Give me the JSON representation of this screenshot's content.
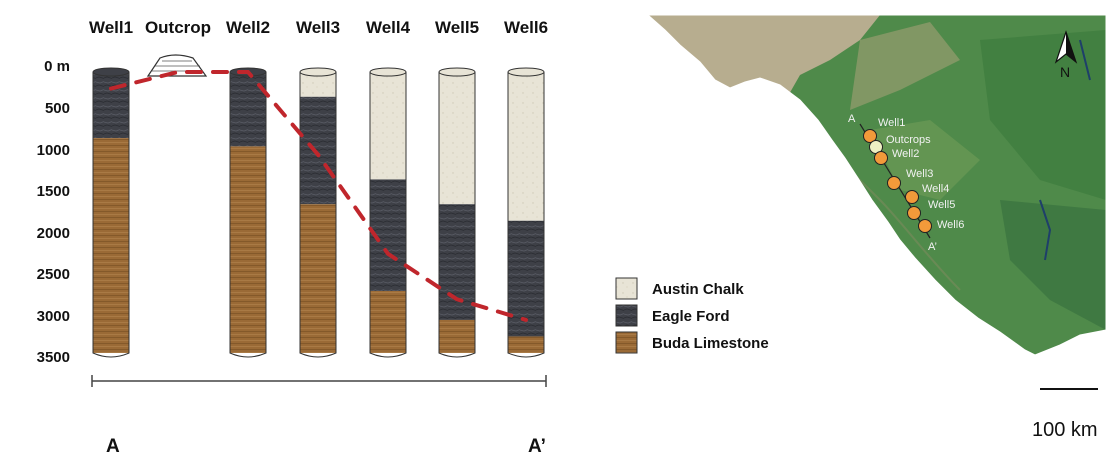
{
  "columns": [
    {
      "label": "Well1"
    },
    {
      "label": "Outcrop"
    },
    {
      "label": "Well2"
    },
    {
      "label": "Well3"
    },
    {
      "label": "Well4"
    },
    {
      "label": "Well5"
    },
    {
      "label": "Well6"
    }
  ],
  "wells": [
    {
      "name": "Well1",
      "top": 0,
      "layers": [
        {
          "unit": "eagle_ford",
          "to": 800
        },
        {
          "unit": "buda",
          "to": 3400
        }
      ]
    },
    {
      "name": "Well2",
      "top": 0,
      "layers": [
        {
          "unit": "eagle_ford",
          "to": 900
        },
        {
          "unit": "buda",
          "to": 3400
        }
      ]
    },
    {
      "name": "Well3",
      "top": 0,
      "layers": [
        {
          "unit": "austin_chalk",
          "to": 300
        },
        {
          "unit": "eagle_ford",
          "to": 1600
        },
        {
          "unit": "buda",
          "to": 3400
        }
      ]
    },
    {
      "name": "Well4",
      "top": 0,
      "layers": [
        {
          "unit": "austin_chalk",
          "to": 1300
        },
        {
          "unit": "eagle_ford",
          "to": 2650
        },
        {
          "unit": "buda",
          "to": 3400
        }
      ]
    },
    {
      "name": "Well5",
      "top": 0,
      "layers": [
        {
          "unit": "austin_chalk",
          "to": 1600
        },
        {
          "unit": "eagle_ford",
          "to": 3000
        },
        {
          "unit": "buda",
          "to": 3400
        }
      ]
    },
    {
      "name": "Well6",
      "top": 0,
      "layers": [
        {
          "unit": "austin_chalk",
          "to": 1800
        },
        {
          "unit": "eagle_ford",
          "to": 3200
        },
        {
          "unit": "buda",
          "to": 3400
        }
      ]
    }
  ],
  "depth_ticks": [
    "0 m",
    "500",
    "1000",
    "1500",
    "2000",
    "2500",
    "3000",
    "3500"
  ],
  "depth_values": [
    0,
    500,
    1000,
    1500,
    2000,
    2500,
    3000,
    3500
  ],
  "correlation_depths": [
    {
      "at": "Well1",
      "depth": 200
    },
    {
      "at": "Outcrop",
      "depth": 0
    },
    {
      "at": "Well2",
      "depth": 0
    },
    {
      "at": "Well3",
      "depth": 1000
    },
    {
      "at": "Well4",
      "depth": 2200
    },
    {
      "at": "Well5",
      "depth": 2750
    },
    {
      "at": "Well6",
      "depth": 3000
    }
  ],
  "units": {
    "austin_chalk": {
      "label": "Austin Chalk",
      "color": "#e8e4d6"
    },
    "eagle_ford": {
      "label": "Eagle Ford",
      "color": "#3e4047"
    },
    "buda": {
      "label": "Buda Limestone",
      "color": "#9a6a36"
    }
  },
  "legend": [
    "austin_chalk",
    "eagle_ford",
    "buda"
  ],
  "section_ends": {
    "left": "A",
    "right": "A’"
  },
  "correlation_color": "#c0262c",
  "map": {
    "wells": [
      {
        "label": "Well1",
        "color": "#f29a3a"
      },
      {
        "label": "Outcrops",
        "color": "#eef0c2"
      },
      {
        "label": "Well2",
        "color": "#f29a3a"
      },
      {
        "label": "Well3",
        "color": "#f29a3a"
      },
      {
        "label": "Well4",
        "color": "#f29a3a"
      },
      {
        "label": "Well5",
        "color": "#f29a3a"
      },
      {
        "label": "Well6",
        "color": "#f29a3a"
      }
    ],
    "line_ends": {
      "start": "A",
      "end": "A’"
    },
    "north_label": "N",
    "scale_label": "100 km",
    "land_color": "#4f8a4a",
    "arid_color": "#b7ad8f",
    "water_color": "#dde6ea"
  }
}
